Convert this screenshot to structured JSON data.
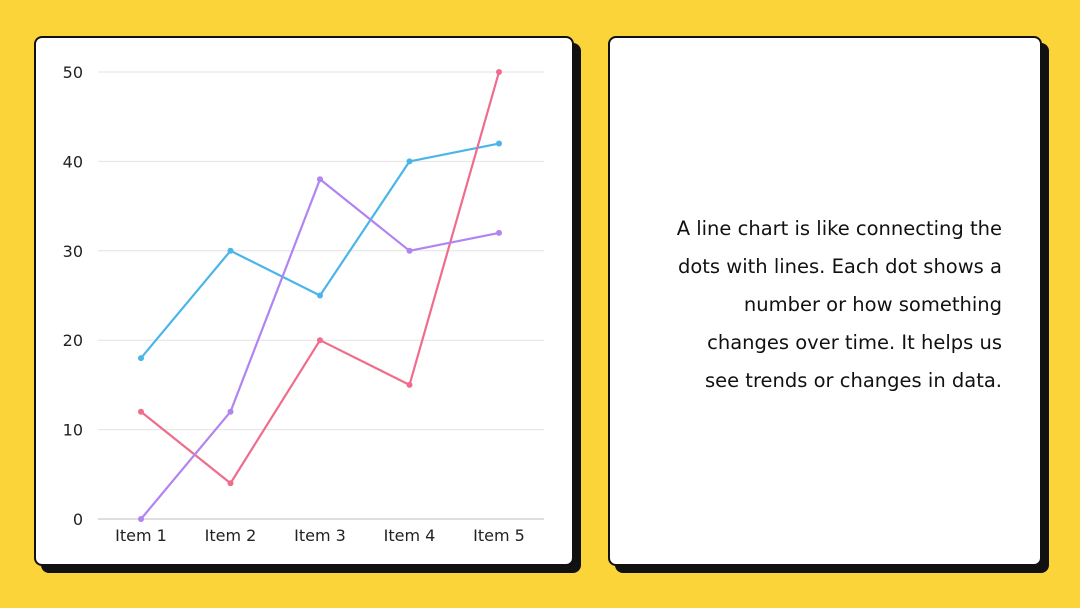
{
  "chart_data": {
    "type": "line",
    "categories": [
      "Item 1",
      "Item 2",
      "Item 3",
      "Item 4",
      "Item 5"
    ],
    "ylim": [
      0,
      50
    ],
    "yticks": [
      0,
      10,
      20,
      30,
      40,
      50
    ],
    "grid": true,
    "series": [
      {
        "color": "#4bb5ea",
        "values": [
          18,
          30,
          25,
          40,
          42
        ]
      },
      {
        "color": "#f06c8c",
        "values": [
          12,
          4,
          20,
          15,
          50
        ]
      },
      {
        "color": "#b184f0",
        "values": [
          0,
          12,
          38,
          30,
          32
        ]
      }
    ]
  },
  "description": "A line chart is like connecting the\ndots with lines. Each dot shows a\nnumber or how something\nchanges over time.  It helps us\nsee trends or changes in data."
}
